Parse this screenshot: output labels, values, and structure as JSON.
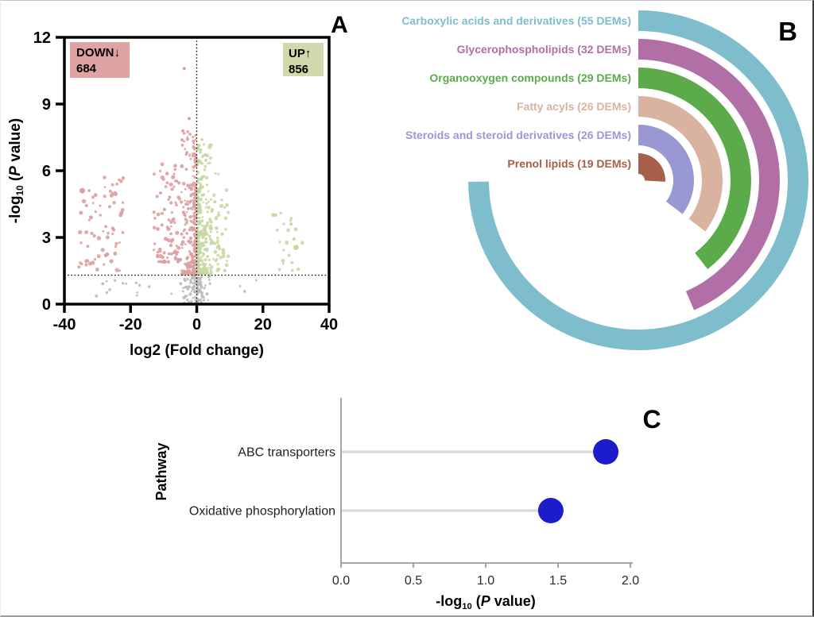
{
  "figure": {
    "panels": {
      "a": {
        "letter": "A"
      },
      "b": {
        "letter": "B"
      },
      "c": {
        "letter": "C"
      }
    }
  },
  "chart_data": [
    {
      "id": "volcano_plot",
      "type": "scatter",
      "xlabel": "log2 (Fold change)",
      "ylabel": "-log10 (P value)",
      "xlim": [
        -40,
        40
      ],
      "ylim": [
        0,
        12
      ],
      "xticks": [
        -40,
        -20,
        0,
        20,
        40
      ],
      "yticks": [
        0,
        3,
        6,
        9,
        12
      ],
      "xtick_labels": [
        "-40",
        "-20",
        "0",
        "20",
        "40"
      ],
      "ytick_labels": [
        "0",
        "3",
        "6",
        "9",
        "12"
      ],
      "threshold_lines": {
        "vertical_x": 0,
        "horizontal_y": 1.3
      },
      "down_count": 684,
      "up_count": 856,
      "annotations": {
        "down": {
          "label": "DOWN↓",
          "count": "684",
          "box_color": "#dfa3a3"
        },
        "up": {
          "label": "UP↑",
          "count": "856",
          "box_color": "#cfd9ab"
        }
      },
      "colors": {
        "down": "#dd9e9e",
        "up": "#c8d7a4",
        "ns": "#bababa"
      },
      "point_clusters": [
        {
          "side": "down",
          "n": 260,
          "x_edge": -0.3,
          "x_far": -4.6,
          "x_pow": 2.4,
          "y_min": 1.35,
          "y_max": 7.8,
          "y_pow": 1.9,
          "r_min": 1.2,
          "r_max": 2.4
        },
        {
          "side": "down",
          "n": 90,
          "x_edge": -4.5,
          "x_far": -13,
          "x_pow": 1.2,
          "y_min": 1.9,
          "y_max": 6.3,
          "y_pow": 1.5,
          "r_min": 1.4,
          "r_max": 2.6
        },
        {
          "side": "down",
          "n": 68,
          "x_edge": -22,
          "x_far": -36,
          "x_pow": 1.0,
          "y_min": 1.5,
          "y_max": 5.7,
          "y_pow": 1.2,
          "r_min": 1.4,
          "r_max": 2.7
        },
        {
          "side": "up",
          "n": 260,
          "x_edge": 0.3,
          "x_far": 4.4,
          "x_pow": 2.4,
          "y_min": 1.35,
          "y_max": 7.2,
          "y_pow": 1.9,
          "r_min": 1.2,
          "r_max": 2.4
        },
        {
          "side": "up",
          "n": 48,
          "x_edge": 4.4,
          "x_far": 10.5,
          "x_pow": 1.3,
          "y_min": 1.5,
          "y_max": 5.9,
          "y_pow": 1.5,
          "r_min": 1.4,
          "r_max": 2.5
        },
        {
          "side": "up",
          "n": 20,
          "x_edge": 23,
          "x_far": 32,
          "x_pow": 1.0,
          "y_min": 1.5,
          "y_max": 4.3,
          "y_pow": 1.2,
          "r_min": 1.4,
          "r_max": 2.6
        },
        {
          "side": "ns",
          "n": 48,
          "x_edge": -0.15,
          "x_far": -4.2,
          "x_pow": 2.0,
          "y_min": 0.05,
          "y_max": 1.25,
          "y_pow": 1.0,
          "r_min": 1.2,
          "r_max": 2.2
        },
        {
          "side": "ns",
          "n": 48,
          "x_edge": 0.15,
          "x_far": 4.2,
          "x_pow": 2.0,
          "y_min": 0.05,
          "y_max": 1.25,
          "y_pow": 1.0,
          "r_min": 1.2,
          "r_max": 2.2
        },
        {
          "side": "ns",
          "n": 22,
          "x_edge": -31,
          "x_far": 18,
          "x_pow": 1.0,
          "y_min": 0.3,
          "y_max": 1.15,
          "y_pow": 1.0,
          "r_min": 1.3,
          "r_max": 2.1
        }
      ],
      "outlier_points": [
        {
          "x": -3.8,
          "y": 10.6,
          "r": 2.0,
          "side": "down"
        },
        {
          "x": -2.3,
          "y": 8.35,
          "r": 2.0,
          "side": "down"
        },
        {
          "x": -34.6,
          "y": 5.1,
          "r": 3.4,
          "side": "down"
        },
        {
          "x": -27.5,
          "y": 2.2,
          "r": 2.2,
          "side": "down"
        },
        {
          "x": 30,
          "y": 2.55,
          "r": 3.4,
          "side": "up"
        },
        {
          "x": 1.6,
          "y": 7.4,
          "r": 1.8,
          "side": "up"
        },
        {
          "x": 28.5,
          "y": 3.6,
          "r": 2.0,
          "side": "up"
        },
        {
          "x": 25,
          "y": 1.55,
          "r": 1.8,
          "side": "up"
        }
      ]
    },
    {
      "id": "metabolite_class_racetrack",
      "type": "circular-bar",
      "unit": "DEMs",
      "deg_per_unit": 4.9,
      "start": "12-oclock",
      "direction": "clockwise",
      "categories": [
        {
          "label": "Carboxylic acids and derivatives (55 DEMs)",
          "name": "Carboxylic acids and derivatives",
          "value": 55,
          "color": "#7ebdcb"
        },
        {
          "label": "Glycerophospholipids (32 DEMs)",
          "name": "Glycerophospholipids",
          "value": 32,
          "color": "#b16fa5"
        },
        {
          "label": "Organooxygen compounds (29 DEMs)",
          "name": "Organooxygen compounds",
          "value": 29,
          "color": "#5cab4b"
        },
        {
          "label": "Fatty acyls (26 DEMs)",
          "name": "Fatty acyls",
          "value": 26,
          "color": "#d9b2a0"
        },
        {
          "label": "Steroids and steroid derivatives (26 DEMs)",
          "name": "Steroids and steroid derivatives",
          "value": 26,
          "color": "#9a98d3"
        },
        {
          "label": "Prenol lipids (19 DEMs)",
          "name": "Prenol lipids",
          "value": 19,
          "color": "#a55f4b"
        }
      ]
    },
    {
      "id": "pathway_enrichment",
      "type": "lollipop",
      "xlabel": "-log10 (P value)",
      "ylabel": "Pathway",
      "xlim": [
        0,
        2.0
      ],
      "xticks": [
        0,
        0.5,
        1.0,
        1.5,
        2.0
      ],
      "xtick_labels": [
        "0.0",
        "0.5",
        "1.0",
        "1.5",
        "2.0"
      ],
      "categories": [
        "ABC transporters",
        "Oxidative phosphorylation"
      ],
      "values": [
        1.83,
        1.45
      ],
      "dot_color": "#1c1ccd",
      "stem_color": "#d9d9d9",
      "axis_color": "#9a9a9a"
    }
  ]
}
